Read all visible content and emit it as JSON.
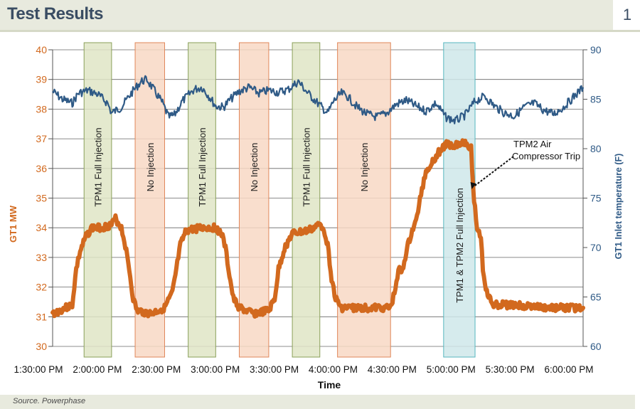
{
  "header": {
    "title": "Test Results",
    "page_number": "1"
  },
  "footer": {
    "source": "Source. Powerphase"
  },
  "colors": {
    "mw_series": "#d2691e",
    "temp_series": "#2f5a86",
    "left_axis": "#d2691e",
    "right_axis": "#2f5a86",
    "band_full_injection": "#dfe5c6",
    "band_full_injection_border": "#8aa05a",
    "band_no_injection": "#f8d8c4",
    "band_no_injection_border": "#e0875a",
    "band_both": "#cfe8ea",
    "band_both_border": "#57b7bf",
    "grid": "#666666"
  },
  "chart_data": {
    "type": "line",
    "title": "",
    "xlabel": "Time",
    "ylabel_left": "GT1 MW",
    "ylabel_right": "GT1 Inlet temperature (F)",
    "xlim": [
      "13:30",
      "18:00"
    ],
    "ylim_left": [
      30,
      40
    ],
    "ylim_right": [
      60,
      90
    ],
    "grid": true,
    "x_ticks": [
      "1:30:00 PM",
      "2:00:00 PM",
      "2:30:00 PM",
      "3:00:00 PM",
      "3:30:00 PM",
      "4:00:00 PM",
      "4:30:00 PM",
      "5:00:00 PM",
      "5:30:00 PM",
      "6:00:00 PM"
    ],
    "y_ticks_left": [
      "30",
      "31",
      "32",
      "33",
      "34",
      "35",
      "36",
      "37",
      "38",
      "39",
      "40"
    ],
    "y_ticks_right": [
      "60",
      "65",
      "70",
      "75",
      "80",
      "85",
      "90"
    ],
    "bands": [
      {
        "label": "TPM1  Full Injection",
        "kind": "full",
        "start": "13:46",
        "end": "14:00"
      },
      {
        "label": "No Injection",
        "kind": "none",
        "start": "14:12",
        "end": "14:27"
      },
      {
        "label": "TPM1  Full Injection",
        "kind": "full",
        "start": "14:39",
        "end": "14:53"
      },
      {
        "label": "No Injection",
        "kind": "none",
        "start": "15:05",
        "end": "15:20"
      },
      {
        "label": "TPM1  Full Injection",
        "kind": "full",
        "start": "15:32",
        "end": "15:46"
      },
      {
        "label": "No Injection",
        "kind": "none",
        "start": "15:55",
        "end": "16:22"
      },
      {
        "label": "TPM1 & TPM2 Full Injection",
        "kind": "both",
        "start": "16:49",
        "end": "17:05"
      }
    ],
    "annotations": [
      {
        "text_lines": [
          "TPM2 Air",
          "Compressor Trip"
        ],
        "time": "17:03",
        "mw": 35.3
      }
    ],
    "series": [
      {
        "name": "GT1 MW",
        "axis": "left",
        "points": [
          [
            "13:30",
            31.1
          ],
          [
            "13:40",
            31.4
          ],
          [
            "13:42",
            32.6
          ],
          [
            "13:44",
            33.2
          ],
          [
            "13:47",
            33.7
          ],
          [
            "13:50",
            34.0
          ],
          [
            "13:55",
            34.0
          ],
          [
            "14:00",
            34.1
          ],
          [
            "14:02",
            34.3
          ],
          [
            "14:05",
            34.0
          ],
          [
            "14:07",
            33.4
          ],
          [
            "14:09",
            32.6
          ],
          [
            "14:11",
            31.6
          ],
          [
            "14:13",
            31.2
          ],
          [
            "14:20",
            31.1
          ],
          [
            "14:27",
            31.3
          ],
          [
            "14:31",
            31.8
          ],
          [
            "14:33",
            32.6
          ],
          [
            "14:35",
            33.4
          ],
          [
            "14:38",
            33.9
          ],
          [
            "14:45",
            34.0
          ],
          [
            "14:53",
            34.0
          ],
          [
            "14:56",
            33.8
          ],
          [
            "14:58",
            33.3
          ],
          [
            "15:00",
            32.4
          ],
          [
            "15:02",
            31.6
          ],
          [
            "15:05",
            31.3
          ],
          [
            "15:12",
            31.1
          ],
          [
            "15:20",
            31.2
          ],
          [
            "15:23",
            31.6
          ],
          [
            "15:25",
            32.6
          ],
          [
            "15:28",
            33.3
          ],
          [
            "15:32",
            33.8
          ],
          [
            "15:40",
            33.9
          ],
          [
            "15:46",
            34.1
          ],
          [
            "15:48",
            34.0
          ],
          [
            "15:50",
            33.4
          ],
          [
            "15:52",
            32.3
          ],
          [
            "15:54",
            31.6
          ],
          [
            "15:57",
            31.3
          ],
          [
            "16:05",
            31.3
          ],
          [
            "16:15",
            31.3
          ],
          [
            "16:22",
            31.3
          ],
          [
            "16:24",
            31.8
          ],
          [
            "16:26",
            32.6
          ],
          [
            "16:28",
            32.5
          ],
          [
            "16:30",
            33.2
          ],
          [
            "16:33",
            33.9
          ],
          [
            "16:35",
            34.2
          ],
          [
            "16:36",
            34.6
          ],
          [
            "16:38",
            35.3
          ],
          [
            "16:40",
            35.9
          ],
          [
            "16:43",
            36.2
          ],
          [
            "16:46",
            36.5
          ],
          [
            "16:50",
            36.8
          ],
          [
            "16:55",
            36.8
          ],
          [
            "17:00",
            36.9
          ],
          [
            "17:03",
            36.7
          ],
          [
            "17:04",
            35.3
          ],
          [
            "17:06",
            34.0
          ],
          [
            "17:08",
            33.7
          ],
          [
            "17:09",
            32.6
          ],
          [
            "17:11",
            31.8
          ],
          [
            "17:14",
            31.4
          ],
          [
            "17:25",
            31.4
          ],
          [
            "17:40",
            31.3
          ],
          [
            "17:50",
            31.3
          ],
          [
            "18:00",
            31.3
          ]
        ]
      },
      {
        "name": "GT1 Inlet temperature (F)",
        "axis": "right",
        "points": [
          [
            "13:30",
            85.8
          ],
          [
            "13:35",
            85.0
          ],
          [
            "13:40",
            84.6
          ],
          [
            "13:43",
            85.6
          ],
          [
            "13:48",
            85.9
          ],
          [
            "13:53",
            85.5
          ],
          [
            "13:58",
            84.6
          ],
          [
            "14:00",
            83.6
          ],
          [
            "14:05",
            84.2
          ],
          [
            "14:10",
            85.6
          ],
          [
            "14:15",
            86.8
          ],
          [
            "14:18",
            87.0
          ],
          [
            "14:22",
            85.8
          ],
          [
            "14:26",
            84.6
          ],
          [
            "14:29",
            83.2
          ],
          [
            "14:32",
            83.4
          ],
          [
            "14:36",
            84.8
          ],
          [
            "14:42",
            86.0
          ],
          [
            "14:46",
            86.2
          ],
          [
            "14:50",
            85.2
          ],
          [
            "14:53",
            84.3
          ],
          [
            "14:57",
            84.2
          ],
          [
            "15:00",
            84.9
          ],
          [
            "15:05",
            85.8
          ],
          [
            "15:10",
            86.2
          ],
          [
            "15:15",
            85.6
          ],
          [
            "15:20",
            85.9
          ],
          [
            "15:25",
            85.7
          ],
          [
            "15:30",
            86.0
          ],
          [
            "15:35",
            86.8
          ],
          [
            "15:40",
            85.6
          ],
          [
            "15:45",
            84.6
          ],
          [
            "15:48",
            84.0
          ],
          [
            "15:50",
            83.6
          ],
          [
            "15:53",
            84.8
          ],
          [
            "15:57",
            85.6
          ],
          [
            "16:00",
            85.3
          ],
          [
            "16:05",
            84.2
          ],
          [
            "16:10",
            83.5
          ],
          [
            "16:15",
            83.2
          ],
          [
            "16:20",
            83.6
          ],
          [
            "16:25",
            84.5
          ],
          [
            "16:30",
            84.9
          ],
          [
            "16:35",
            84.3
          ],
          [
            "16:40",
            83.8
          ],
          [
            "16:45",
            84.6
          ],
          [
            "16:50",
            83.2
          ],
          [
            "16:55",
            82.8
          ],
          [
            "17:00",
            83.4
          ],
          [
            "17:05",
            84.8
          ],
          [
            "17:10",
            85.3
          ],
          [
            "17:15",
            84.3
          ],
          [
            "17:20",
            83.6
          ],
          [
            "17:25",
            83.3
          ],
          [
            "17:30",
            84.2
          ],
          [
            "17:35",
            84.6
          ],
          [
            "17:40",
            83.9
          ],
          [
            "17:45",
            83.5
          ],
          [
            "17:50",
            84.2
          ],
          [
            "17:55",
            85.2
          ],
          [
            "18:00",
            86.2
          ]
        ]
      }
    ]
  }
}
